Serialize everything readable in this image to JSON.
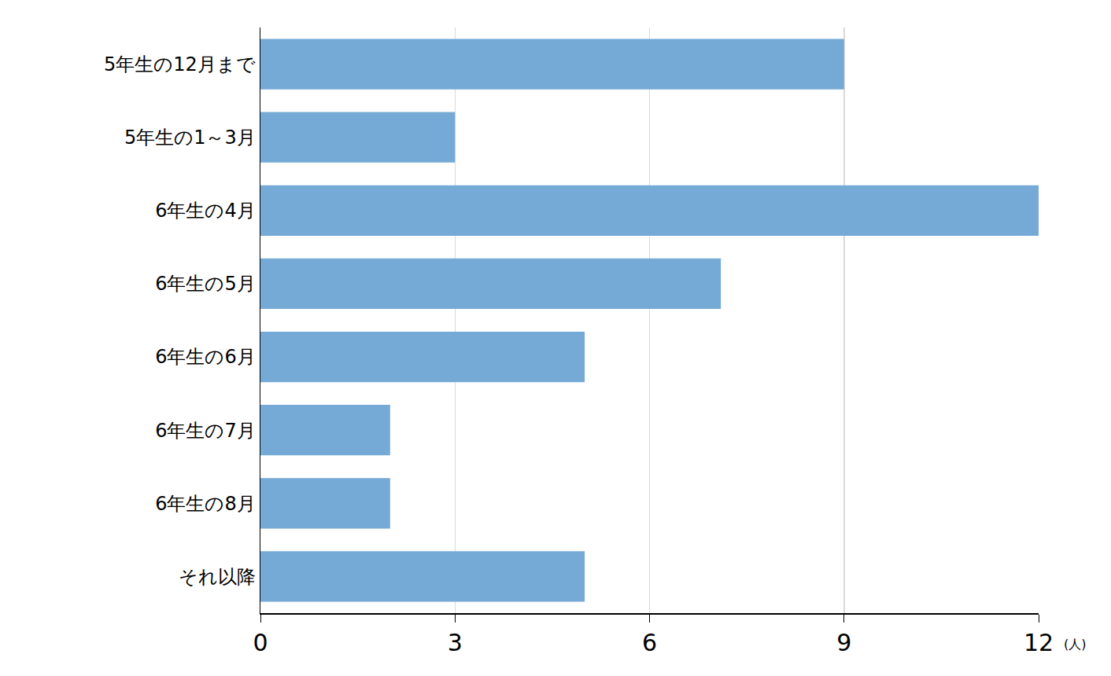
{
  "chart_data": {
    "type": "bar",
    "orientation": "horizontal",
    "categories": [
      "5年生の12月まで",
      "5年生の1～3月",
      "6年生の4月",
      "6年生の5月",
      "6年生の6月",
      "6年生の7月",
      "6年生の8月",
      "それ以降"
    ],
    "values": [
      9,
      3,
      12,
      7.1,
      5,
      2,
      2,
      5
    ],
    "color": "#75aad6",
    "x_label": "(人)",
    "xlim": [
      0,
      12
    ],
    "xticks": [
      0,
      3,
      6,
      9,
      12
    ],
    "grid": true
  }
}
